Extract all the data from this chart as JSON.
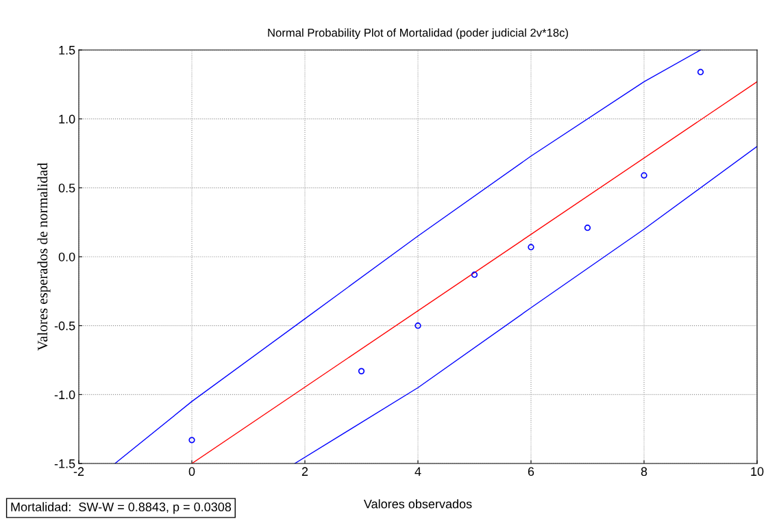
{
  "chart_data": {
    "type": "scatter",
    "title": "Normal Probability Plot of Mortalidad (poder judicial 2v*18c)",
    "xlabel": "Valores observados",
    "ylabel": "Valores esperados de normalidad",
    "xlim": [
      -2,
      10
    ],
    "ylim": [
      -1.5,
      1.5
    ],
    "xticks": [
      -2,
      0,
      2,
      4,
      6,
      8,
      10
    ],
    "yticks": [
      {
        "value": -1.5,
        "label": "-1.5"
      },
      {
        "value": -1.0,
        "label": "-1.0"
      },
      {
        "value": -0.5,
        "label": "-0.5"
      },
      {
        "value": 0.0,
        "label": "0.0"
      },
      {
        "value": 0.5,
        "label": "0.5"
      },
      {
        "value": 1.0,
        "label": "1.0"
      },
      {
        "value": 1.5,
        "label": "1.5"
      }
    ],
    "grid": true,
    "series": [
      {
        "marker": "circle",
        "color": "#0000ff",
        "x": [
          0,
          3,
          4,
          5,
          6,
          7,
          8,
          9
        ],
        "values": [
          -1.33,
          -0.83,
          -0.5,
          -0.13,
          0.07,
          0.21,
          0.59,
          1.34
        ]
      },
      {
        "type": "line",
        "color": "#ff0000",
        "x": [
          0,
          10
        ],
        "values": [
          -1.5,
          1.27
        ]
      },
      {
        "type": "line",
        "color": "#0000ff",
        "x": [
          -1.36,
          0,
          2,
          4,
          6,
          8,
          9
        ],
        "values": [
          -1.5,
          -1.05,
          -0.45,
          0.15,
          0.73,
          1.27,
          1.5
        ]
      },
      {
        "type": "line",
        "color": "#0000ff",
        "x": [
          1.82,
          4,
          6,
          8,
          10
        ],
        "values": [
          -1.5,
          -0.95,
          -0.37,
          0.2,
          0.8
        ]
      }
    ],
    "annotations": [
      "Mortalidad:  SW-W = 0.8843, p = 0.0308"
    ]
  }
}
